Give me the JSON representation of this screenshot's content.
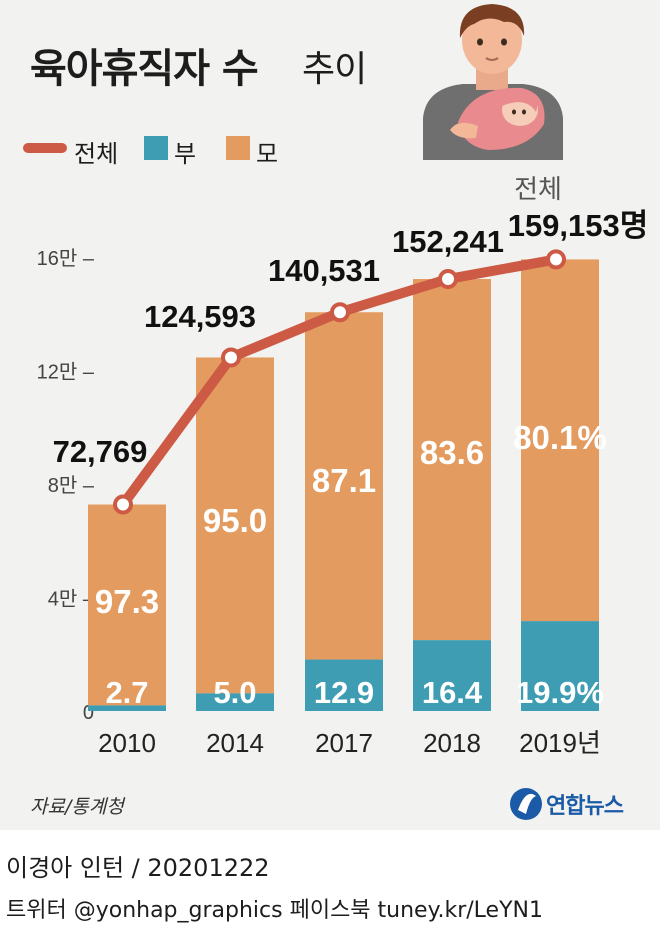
{
  "header": {
    "title": "육아휴직자 수",
    "title_suffix": "추이"
  },
  "legend": {
    "total": "전체",
    "father": "부",
    "mother": "모"
  },
  "colors": {
    "total_line": "#cd5a45",
    "father": "#3e9db3",
    "mother": "#e39b5f",
    "background": "#f2f2f0"
  },
  "chart_data": {
    "type": "bar",
    "stacked": true,
    "categories": [
      "2010",
      "2014",
      "2017",
      "2018",
      "2019년"
    ],
    "ylim": [
      0,
      160000
    ],
    "yticks": [
      {
        "value": 0,
        "label": "0"
      },
      {
        "value": 40000,
        "label": "4만 –"
      },
      {
        "value": 80000,
        "label": "8만 –"
      },
      {
        "value": 120000,
        "label": "12만 –"
      },
      {
        "value": 160000,
        "label": "16만 –"
      }
    ],
    "series": [
      {
        "name": "부",
        "share_pct": [
          2.7,
          5.0,
          12.9,
          16.4,
          19.9
        ],
        "labels": [
          "2.7",
          "5.0",
          "12.9",
          "16.4",
          "19.9%"
        ]
      },
      {
        "name": "모",
        "share_pct": [
          97.3,
          95.0,
          87.1,
          83.6,
          80.1
        ],
        "labels": [
          "97.3",
          "95.0",
          "87.1",
          "83.6",
          "80.1%"
        ]
      },
      {
        "name": "전체",
        "type": "line",
        "values": [
          72769,
          124593,
          140531,
          152241,
          159153
        ],
        "labels": [
          "72,769",
          "124,593",
          "140,531",
          "152,241",
          "159,153명"
        ]
      }
    ],
    "annotation": "전체"
  },
  "footer": {
    "source": "자료/통계청",
    "logo": "연합뉴스",
    "credit": "이경아 인턴 / 20201222",
    "social": "트위터 @yonhap_graphics  페이스북 tuney.kr/LeYN1"
  }
}
